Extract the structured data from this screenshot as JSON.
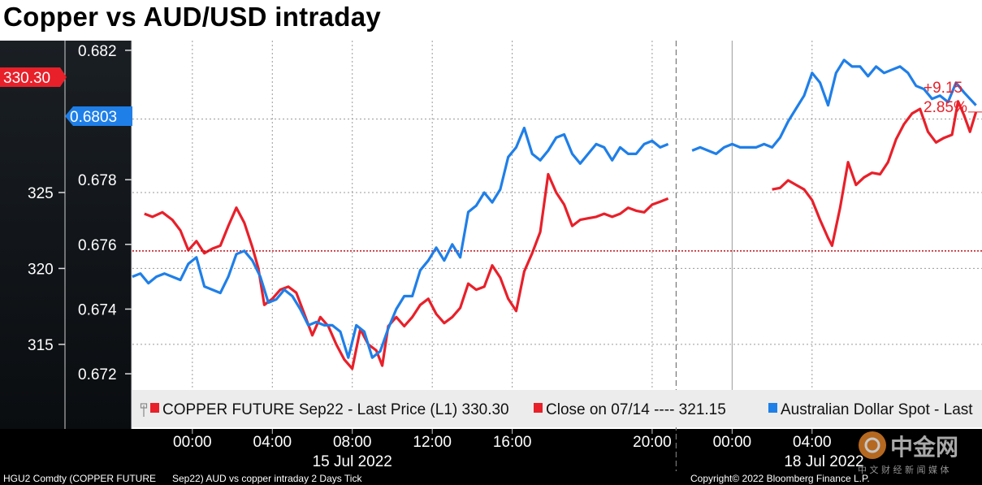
{
  "title": "Copper vs AUD/USD intraday",
  "colors": {
    "copper": "#e8202a",
    "aud": "#1f7fe8",
    "close": "#c0101a"
  },
  "chart_data": {
    "type": "line",
    "title": "Copper vs AUD/USD intraday",
    "y_left": {
      "ticks": [
        "315",
        "320",
        "325"
      ],
      "range": [
        312,
        335
      ],
      "last_label": "330.30"
    },
    "y_right": {
      "ticks": [
        "0.682",
        "0.68",
        "0.678",
        "0.676",
        "0.674",
        "0.672"
      ],
      "range": [
        0.6715,
        0.6823
      ],
      "last_label": "0.6803"
    },
    "x_ticks": [
      "00:00",
      "04:00",
      "08:00",
      "12:00",
      "16:00",
      "20:00",
      "00:00",
      "04:00"
    ],
    "date_labels": [
      "15 Jul 2022",
      "18 Jul 2022"
    ],
    "change_labels": [
      "+9.15",
      "2.85%"
    ],
    "legend": [
      {
        "label": "COPPER FUTURE Sep22 - Last Price (L1) 330.30",
        "color": "#e8202a"
      },
      {
        "label": "Close on 07/14 ---- 321.15",
        "color": "#e8202a"
      },
      {
        "label": "Australian Dollar Spot - Last",
        "color": "#1f7fe8"
      }
    ],
    "series": [
      {
        "name": "COPPER FUTURE Sep22 - Last Price (L1)",
        "axis": "left",
        "segments": [
          [
            [
              0.6,
              323.6
            ],
            [
              1.0,
              323.4
            ],
            [
              1.5,
              323.7
            ],
            [
              2.0,
              323.2
            ],
            [
              2.4,
              322.5
            ],
            [
              2.8,
              321.2
            ],
            [
              3.2,
              321.8
            ],
            [
              3.6,
              321.0
            ],
            [
              4.0,
              321.3
            ],
            [
              4.4,
              321.5
            ],
            [
              4.8,
              322.8
            ],
            [
              5.2,
              324.0
            ],
            [
              5.6,
              323.0
            ],
            [
              6.0,
              321.4
            ],
            [
              6.3,
              320.0
            ],
            [
              6.6,
              317.6
            ],
            [
              7.0,
              318.0
            ],
            [
              7.4,
              318.6
            ],
            [
              7.8,
              318.8
            ],
            [
              8.2,
              318.4
            ],
            [
              8.6,
              317.0
            ],
            [
              9.0,
              315.6
            ],
            [
              9.4,
              316.8
            ],
            [
              9.8,
              316.2
            ],
            [
              10.2,
              315.0
            ],
            [
              10.6,
              314.0
            ],
            [
              11.0,
              313.4
            ],
            [
              11.4,
              316.0
            ],
            [
              11.8,
              315.0
            ],
            [
              12.2,
              314.6
            ],
            [
              12.5,
              313.6
            ],
            [
              12.8,
              316.2
            ],
            [
              13.2,
              316.8
            ],
            [
              13.6,
              316.2
            ],
            [
              14.0,
              316.8
            ],
            [
              14.4,
              317.6
            ],
            [
              14.8,
              318.0
            ],
            [
              15.2,
              317.0
            ],
            [
              15.6,
              316.4
            ],
            [
              16.0,
              316.8
            ],
            [
              16.4,
              317.4
            ],
            [
              16.8,
              319.0
            ],
            [
              17.2,
              318.6
            ],
            [
              17.6,
              318.8
            ],
            [
              18.0,
              320.2
            ],
            [
              18.4,
              319.4
            ],
            [
              18.8,
              318.0
            ],
            [
              19.2,
              317.2
            ],
            [
              19.6,
              319.8
            ],
            [
              20.0,
              321.0
            ],
            [
              20.4,
              322.4
            ],
            [
              20.8,
              326.2
            ],
            [
              21.2,
              325.0
            ],
            [
              21.6,
              324.2
            ],
            [
              22.0,
              322.8
            ],
            [
              22.4,
              323.2
            ],
            [
              22.8,
              323.3
            ],
            [
              23.2,
              323.4
            ],
            [
              23.6,
              323.6
            ],
            [
              24.0,
              323.4
            ],
            [
              24.4,
              323.6
            ],
            [
              24.8,
              324.0
            ],
            [
              25.2,
              323.8
            ],
            [
              25.6,
              323.7
            ],
            [
              26.0,
              324.2
            ],
            [
              26.4,
              324.4
            ],
            [
              26.8,
              324.6
            ]
          ],
          [
            [
              32.0,
              325.2
            ],
            [
              32.4,
              325.3
            ],
            [
              32.8,
              325.8
            ],
            [
              33.2,
              325.5
            ],
            [
              33.6,
              325.2
            ],
            [
              34.0,
              324.5
            ],
            [
              34.4,
              323.2
            ],
            [
              34.8,
              322.0
            ],
            [
              35.0,
              321.5
            ],
            [
              35.4,
              324.0
            ],
            [
              35.8,
              327.0
            ],
            [
              36.2,
              325.5
            ],
            [
              36.6,
              326.0
            ],
            [
              37.0,
              326.3
            ],
            [
              37.4,
              326.2
            ],
            [
              37.8,
              327.0
            ],
            [
              38.2,
              328.5
            ],
            [
              38.6,
              329.5
            ],
            [
              39.0,
              330.2
            ],
            [
              39.4,
              330.5
            ],
            [
              39.8,
              329.0
            ],
            [
              40.2,
              328.3
            ],
            [
              40.6,
              328.6
            ],
            [
              41.0,
              328.8
            ],
            [
              41.3,
              331.0
            ],
            [
              41.6,
              330.1
            ],
            [
              41.9,
              329.0
            ],
            [
              42.2,
              330.3
            ]
          ]
        ]
      },
      {
        "name": "Close on 07/14",
        "axis": "left",
        "value": 321.15,
        "style": "dotted"
      },
      {
        "name": "Australian Dollar Spot",
        "axis": "right",
        "segments": [
          [
            [
              0.0,
              0.675
            ],
            [
              0.4,
              0.6751
            ],
            [
              0.8,
              0.6748
            ],
            [
              1.2,
              0.675
            ],
            [
              1.6,
              0.6751
            ],
            [
              2.0,
              0.675
            ],
            [
              2.4,
              0.6749
            ],
            [
              2.8,
              0.6754
            ],
            [
              3.2,
              0.6756
            ],
            [
              3.6,
              0.6747
            ],
            [
              4.0,
              0.6746
            ],
            [
              4.4,
              0.6745
            ],
            [
              4.8,
              0.675
            ],
            [
              5.2,
              0.6757
            ],
            [
              5.6,
              0.6758
            ],
            [
              6.0,
              0.6755
            ],
            [
              6.4,
              0.675
            ],
            [
              6.8,
              0.6742
            ],
            [
              7.2,
              0.6743
            ],
            [
              7.6,
              0.6746
            ],
            [
              8.0,
              0.6744
            ],
            [
              8.4,
              0.674
            ],
            [
              8.8,
              0.6735
            ],
            [
              9.2,
              0.6736
            ],
            [
              9.6,
              0.6735
            ],
            [
              10.0,
              0.6735
            ],
            [
              10.4,
              0.6733
            ],
            [
              10.8,
              0.6725
            ],
            [
              11.2,
              0.6735
            ],
            [
              11.6,
              0.6733
            ],
            [
              12.0,
              0.6725
            ],
            [
              12.4,
              0.6727
            ],
            [
              12.8,
              0.6734
            ],
            [
              13.2,
              0.674
            ],
            [
              13.6,
              0.6744
            ],
            [
              14.0,
              0.6744
            ],
            [
              14.4,
              0.6752
            ],
            [
              14.8,
              0.6755
            ],
            [
              15.2,
              0.6759
            ],
            [
              15.6,
              0.6755
            ],
            [
              16.0,
              0.676
            ],
            [
              16.4,
              0.6756
            ],
            [
              16.8,
              0.677
            ],
            [
              17.2,
              0.6772
            ],
            [
              17.6,
              0.6776
            ],
            [
              18.0,
              0.6773
            ],
            [
              18.4,
              0.6777
            ],
            [
              18.8,
              0.6787
            ],
            [
              19.2,
              0.679
            ],
            [
              19.6,
              0.6796
            ],
            [
              20.0,
              0.6788
            ],
            [
              20.4,
              0.6786
            ],
            [
              20.8,
              0.6789
            ],
            [
              21.2,
              0.6793
            ],
            [
              21.6,
              0.6794
            ],
            [
              22.0,
              0.6788
            ],
            [
              22.4,
              0.6785
            ],
            [
              22.8,
              0.6788
            ],
            [
              23.2,
              0.6791
            ],
            [
              23.6,
              0.679
            ],
            [
              24.0,
              0.6786
            ],
            [
              24.4,
              0.679
            ],
            [
              24.8,
              0.6788
            ],
            [
              25.2,
              0.6788
            ],
            [
              25.6,
              0.6791
            ],
            [
              26.0,
              0.6792
            ],
            [
              26.4,
              0.679
            ],
            [
              26.8,
              0.6791
            ]
          ],
          [
            [
              28.0,
              0.6789
            ],
            [
              28.4,
              0.679
            ],
            [
              28.8,
              0.6789
            ],
            [
              29.2,
              0.6788
            ],
            [
              29.6,
              0.679
            ],
            [
              30.0,
              0.6791
            ],
            [
              30.4,
              0.679
            ],
            [
              30.8,
              0.679
            ],
            [
              31.2,
              0.679
            ],
            [
              31.6,
              0.6791
            ],
            [
              32.0,
              0.679
            ],
            [
              32.4,
              0.6793
            ],
            [
              32.8,
              0.6798
            ],
            [
              33.2,
              0.6802
            ],
            [
              33.6,
              0.6806
            ],
            [
              34.0,
              0.6813
            ],
            [
              34.4,
              0.681
            ],
            [
              34.8,
              0.6803
            ],
            [
              35.2,
              0.6813
            ],
            [
              35.6,
              0.6817
            ],
            [
              36.0,
              0.6815
            ],
            [
              36.4,
              0.6815
            ],
            [
              36.8,
              0.6812
            ],
            [
              37.2,
              0.6815
            ],
            [
              37.6,
              0.6813
            ],
            [
              38.0,
              0.6814
            ],
            [
              38.4,
              0.6815
            ],
            [
              38.8,
              0.6813
            ],
            [
              39.2,
              0.6809
            ],
            [
              39.6,
              0.6808
            ],
            [
              40.0,
              0.6805
            ],
            [
              40.4,
              0.6806
            ],
            [
              40.8,
              0.6804
            ],
            [
              41.2,
              0.681
            ],
            [
              41.6,
              0.6807
            ],
            [
              41.9,
              0.6805
            ],
            [
              42.2,
              0.6803
            ]
          ]
        ]
      }
    ]
  },
  "footer": {
    "left_caption": "HGU2 Comdty (COPPER FUTURE",
    "mid_caption": "Sep22) AUD vs copper intraday 2 Days  Tick",
    "right_caption": "Copyright© 2022 Bloomberg Finance L.P."
  },
  "watermark": {
    "text": "中金网",
    "sub": "中 文 财 经 新 闻 媒 体"
  }
}
